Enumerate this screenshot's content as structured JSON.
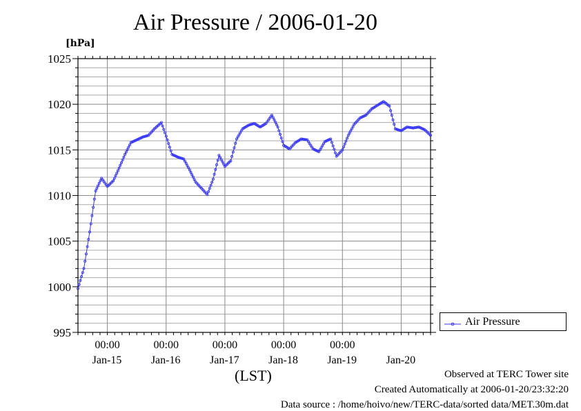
{
  "title": "Air Pressure / 2006-01-20",
  "unit_label": "[hPa]",
  "lst_label": "(LST)",
  "legend": {
    "label": "Air Pressure",
    "color": "#3333ff"
  },
  "footer": {
    "line1": "Observed at TERC Tower site",
    "line2": "Created Automatically at 2006-01-20/23:32:20",
    "line3": "Data source : /home/hoivo/new/TERC-data/sorted data/MET.30m.dat"
  },
  "chart_data": {
    "type": "line",
    "title": "Air Pressure / 2006-01-20",
    "ylabel": "[hPa]",
    "xlabel": "(LST)",
    "ylim": [
      995,
      1025
    ],
    "xlim": [
      0,
      6
    ],
    "y_ticks": [
      "995",
      "1000",
      "1005",
      "1010",
      "1015",
      "1020",
      "1025"
    ],
    "x_time_ticks": [
      "00:00",
      "00:00",
      "00:00",
      "00:00",
      "00:00"
    ],
    "x_day_labels": [
      "Jan-15",
      "Jan-16",
      "Jan-17",
      "Jan-18",
      "Jan-19",
      "Jan-20"
    ],
    "grid": true,
    "legend_position": "right",
    "series": [
      {
        "name": "Air Pressure",
        "color": "#3333ff",
        "x_unit": "days since Jan-14 12:00",
        "points": [
          [
            0.0,
            999.8
          ],
          [
            0.1,
            1002.0
          ],
          [
            0.2,
            1006.0
          ],
          [
            0.3,
            1010.5
          ],
          [
            0.4,
            1011.9
          ],
          [
            0.5,
            1011.0
          ],
          [
            0.6,
            1011.6
          ],
          [
            0.7,
            1013.0
          ],
          [
            0.8,
            1014.5
          ],
          [
            0.9,
            1015.8
          ],
          [
            1.0,
            1016.1
          ],
          [
            1.1,
            1016.4
          ],
          [
            1.2,
            1016.6
          ],
          [
            1.3,
            1017.3
          ],
          [
            1.42,
            1018.0
          ],
          [
            1.5,
            1016.5
          ],
          [
            1.6,
            1014.5
          ],
          [
            1.7,
            1014.2
          ],
          [
            1.8,
            1014.0
          ],
          [
            1.9,
            1012.8
          ],
          [
            2.0,
            1011.5
          ],
          [
            2.1,
            1010.8
          ],
          [
            2.2,
            1010.1
          ],
          [
            2.3,
            1011.8
          ],
          [
            2.4,
            1014.4
          ],
          [
            2.5,
            1013.2
          ],
          [
            2.6,
            1013.8
          ],
          [
            2.7,
            1016.2
          ],
          [
            2.8,
            1017.3
          ],
          [
            2.9,
            1017.7
          ],
          [
            3.0,
            1017.9
          ],
          [
            3.1,
            1017.5
          ],
          [
            3.2,
            1017.9
          ],
          [
            3.3,
            1018.8
          ],
          [
            3.4,
            1017.5
          ],
          [
            3.5,
            1015.5
          ],
          [
            3.6,
            1015.1
          ],
          [
            3.7,
            1015.8
          ],
          [
            3.8,
            1016.2
          ],
          [
            3.9,
            1016.1
          ],
          [
            4.0,
            1015.1
          ],
          [
            4.1,
            1014.8
          ],
          [
            4.2,
            1015.9
          ],
          [
            4.3,
            1016.2
          ],
          [
            4.4,
            1014.3
          ],
          [
            4.5,
            1015.0
          ],
          [
            4.6,
            1016.6
          ],
          [
            4.7,
            1017.8
          ],
          [
            4.8,
            1018.5
          ],
          [
            4.9,
            1018.8
          ],
          [
            5.0,
            1019.5
          ],
          [
            5.1,
            1019.9
          ],
          [
            5.2,
            1020.3
          ],
          [
            5.3,
            1019.8
          ],
          [
            5.4,
            1017.3
          ],
          [
            5.5,
            1017.1
          ],
          [
            5.6,
            1017.5
          ],
          [
            5.7,
            1017.4
          ],
          [
            5.8,
            1017.5
          ],
          [
            5.9,
            1017.2
          ],
          [
            6.0,
            1016.6
          ]
        ]
      }
    ]
  }
}
